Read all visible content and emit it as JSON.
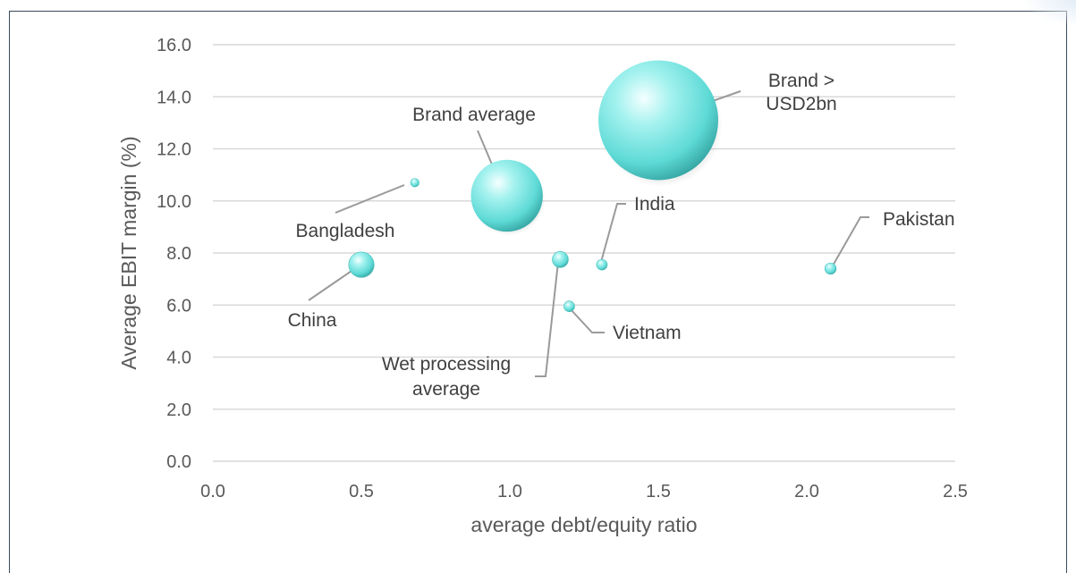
{
  "chart_data": {
    "type": "bubble",
    "xlabel": "average debt/equity ratio",
    "ylabel": "Average EBIT margin (%)",
    "xlim": [
      0,
      2.5
    ],
    "ylim": [
      0,
      16
    ],
    "x_ticks": [
      "0.0",
      "0.5",
      "1.0",
      "1.5",
      "2.0",
      "2.5"
    ],
    "y_ticks": [
      "0.0",
      "2.0",
      "4.0",
      "6.0",
      "8.0",
      "10.0",
      "12.0",
      "14.0",
      "16.0"
    ],
    "grid": "horizontal",
    "bubble_color": "#66e0dc",
    "points": [
      {
        "label": "Brand > USD2bn",
        "lines": [
          "Brand >",
          "USD2bn"
        ],
        "x": 1.5,
        "y": 13.1,
        "size": 100
      },
      {
        "label": "Brand average",
        "lines": [
          "Brand average"
        ],
        "x": 0.99,
        "y": 10.2,
        "size": 36
      },
      {
        "label": "Bangladesh",
        "lines": [
          "Bangladesh"
        ],
        "x": 0.68,
        "y": 10.7,
        "size": 0.5
      },
      {
        "label": "China",
        "lines": [
          "China"
        ],
        "x": 0.5,
        "y": 7.55,
        "size": 4.5
      },
      {
        "label": "Wet processing average",
        "lines": [
          "Wet processing",
          "average"
        ],
        "x": 1.17,
        "y": 7.75,
        "size": 1.8
      },
      {
        "label": "India",
        "lines": [
          "India"
        ],
        "x": 1.31,
        "y": 7.55,
        "size": 0.8
      },
      {
        "label": "Vietnam",
        "lines": [
          "Vietnam"
        ],
        "x": 1.2,
        "y": 5.95,
        "size": 0.8
      },
      {
        "label": "Pakistan",
        "lines": [
          "Pakistan"
        ],
        "x": 2.08,
        "y": 7.4,
        "size": 0.9
      }
    ]
  }
}
